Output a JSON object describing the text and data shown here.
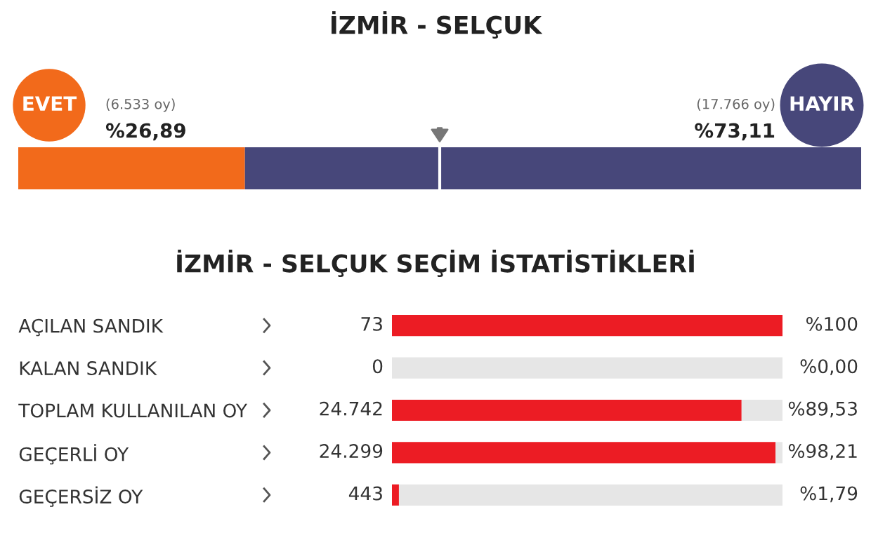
{
  "chart_data": [
    {
      "type": "bar",
      "title": "İZMİR - SELÇUK",
      "orientation": "horizontal",
      "stacked": true,
      "categories": [
        null
      ],
      "xlim": [
        0,
        100
      ],
      "tick_labels": false,
      "legend": "top",
      "series": [
        {
          "name": "EVET",
          "color": "#f26a1b",
          "values": [
            26.89
          ],
          "value_labels": [
            "%26,89"
          ]
        },
        {
          "name": "HAYIR",
          "color": "#47477a",
          "values": [
            73.11
          ],
          "value_labels": [
            "%73,11"
          ]
        }
      ],
      "annotations": [
        "(6.533 oy)",
        "(17.766 oy)"
      ],
      "ref_lines": [
        {
          "axis": "x",
          "value": 50,
          "color": "#ffffff"
        }
      ]
    },
    {
      "type": "bar",
      "title": "İZMİR - SELÇUK SEÇİM İSTATİSTİKLERİ",
      "orientation": "horizontal",
      "stacked": true,
      "categories": [
        "AÇILAN SANDIK",
        "KALAN SANDIK",
        "TOPLAM KULLANILAN OY",
        "GEÇERLİ OY",
        "GEÇERSİZ OY"
      ],
      "xlim": [
        0,
        100
      ],
      "tick_labels": "y",
      "series": [
        {
          "color": "#ec1c24",
          "values": [
            100,
            0,
            89.53,
            98.21,
            1.79
          ],
          "value_labels": [
            "%100",
            "%0,00",
            "%89,53",
            "%98,21",
            "%1,79"
          ]
        },
        {
          "color": "#e6e6e6",
          "values": [
            null,
            100,
            10.47,
            1.79,
            98.21
          ]
        }
      ],
      "annotations": [
        "73",
        "0",
        "24.742",
        "24.299",
        "443"
      ]
    }
  ]
}
